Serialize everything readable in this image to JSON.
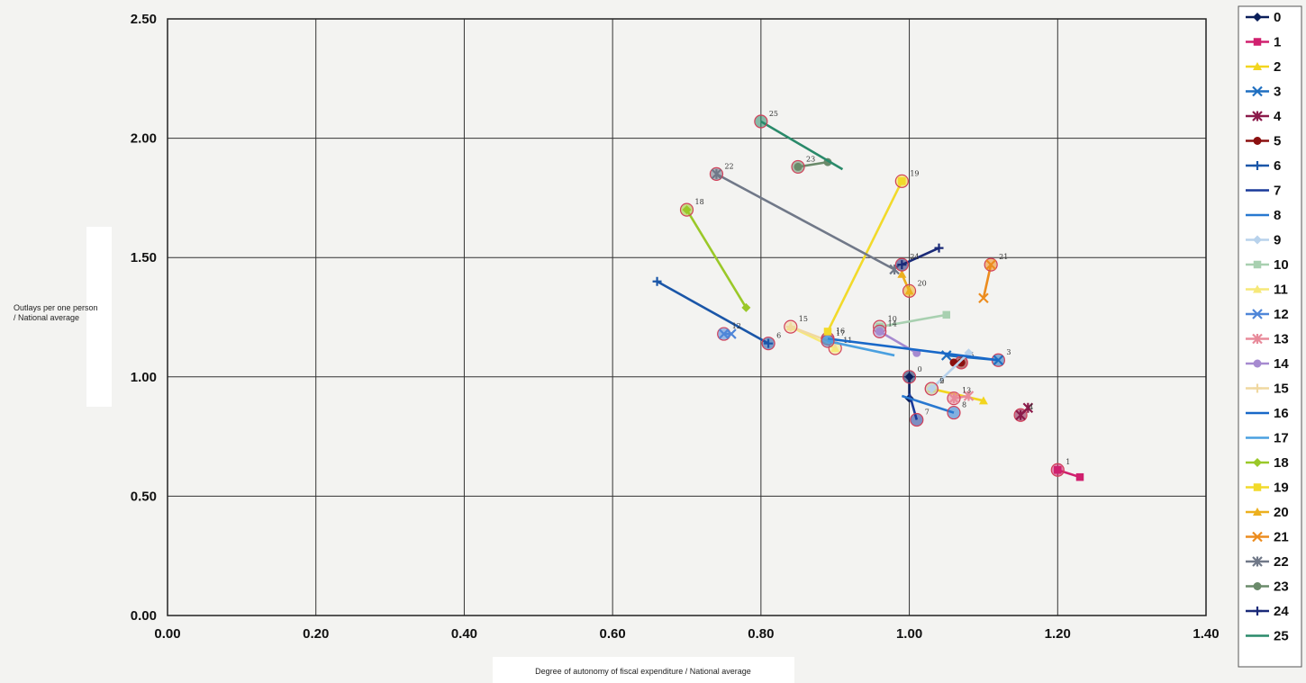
{
  "chart_data": {
    "type": "scatter",
    "xlabel": "Degree of autonomy of fiscal expenditure / National average",
    "ylabel_lines": [
      "Outlays per one person",
      "/ National average"
    ],
    "xlim": [
      0,
      1.4
    ],
    "ylim": [
      0,
      2.5
    ],
    "xticks": [
      "0.00",
      "0.20",
      "0.40",
      "0.60",
      "0.80",
      "1.00",
      "1.20",
      "1.40"
    ],
    "yticks": [
      "0.00",
      "0.50",
      "1.00",
      "1.50",
      "2.00",
      "2.50"
    ],
    "grid": true,
    "legend_position": "right",
    "series": [
      {
        "name": "0",
        "color": "#0a1e5a",
        "marker": "diamond",
        "points": [
          [
            1.0,
            1.0
          ],
          [
            1.0,
            0.91
          ]
        ],
        "circle_label": "0"
      },
      {
        "name": "1",
        "color": "#d0206e",
        "marker": "square",
        "points": [
          [
            1.2,
            0.61
          ],
          [
            1.23,
            0.58
          ]
        ],
        "circle_label": "1"
      },
      {
        "name": "2",
        "color": "#f2d51e",
        "marker": "triangle",
        "points": [
          [
            1.03,
            0.95
          ],
          [
            1.1,
            0.9
          ]
        ],
        "circle_label": "2"
      },
      {
        "name": "3",
        "color": "#1f6fc0",
        "marker": "x",
        "points": [
          [
            1.12,
            1.07
          ],
          [
            1.05,
            1.09
          ]
        ],
        "circle_label": "3"
      },
      {
        "name": "4",
        "color": "#8b1a4a",
        "marker": "star",
        "points": [
          [
            1.15,
            0.84
          ],
          [
            1.16,
            0.87
          ]
        ],
        "circle_label": "4"
      },
      {
        "name": "5",
        "color": "#8b1010",
        "marker": "circle",
        "points": [
          [
            1.07,
            1.06
          ],
          [
            1.06,
            1.06
          ]
        ],
        "circle_label": "5"
      },
      {
        "name": "6",
        "color": "#1a56a8",
        "marker": "plus",
        "points": [
          [
            0.81,
            1.14
          ],
          [
            0.66,
            1.4
          ]
        ],
        "circle_label": "6"
      },
      {
        "name": "7",
        "color": "#1a3a9a",
        "marker": "none",
        "points": [
          [
            1.01,
            0.82
          ],
          [
            1.0,
            0.93
          ]
        ],
        "circle_label": "7"
      },
      {
        "name": "8",
        "color": "#2878d0",
        "marker": "none",
        "points": [
          [
            1.06,
            0.85
          ],
          [
            0.99,
            0.92
          ]
        ],
        "circle_label": "8"
      },
      {
        "name": "9",
        "color": "#b8d2ec",
        "marker": "diamond",
        "points": [
          [
            1.03,
            0.95
          ],
          [
            1.08,
            1.1
          ]
        ],
        "circle_label": "9"
      },
      {
        "name": "10",
        "color": "#a8d0b0",
        "marker": "square",
        "points": [
          [
            0.96,
            1.21
          ],
          [
            1.05,
            1.26
          ]
        ],
        "circle_label": "10"
      },
      {
        "name": "11",
        "color": "#f6e878",
        "marker": "triangle",
        "points": [
          [
            0.9,
            1.12
          ],
          [
            0.84,
            1.21
          ]
        ],
        "circle_label": "11"
      },
      {
        "name": "12",
        "color": "#4f86d8",
        "marker": "x",
        "points": [
          [
            0.75,
            1.18
          ],
          [
            0.76,
            1.18
          ]
        ],
        "circle_label": "12"
      },
      {
        "name": "13",
        "color": "#e88a9a",
        "marker": "star",
        "points": [
          [
            1.06,
            0.91
          ],
          [
            1.08,
            0.92
          ]
        ],
        "circle_label": "13"
      },
      {
        "name": "14",
        "color": "#a68ad0",
        "marker": "circle",
        "points": [
          [
            0.96,
            1.19
          ],
          [
            1.01,
            1.1
          ]
        ],
        "circle_label": "14"
      },
      {
        "name": "15",
        "color": "#f0d8a0",
        "marker": "plus",
        "points": [
          [
            0.84,
            1.21
          ],
          [
            0.9,
            1.14
          ]
        ],
        "circle_label": "15"
      },
      {
        "name": "16",
        "color": "#1868c8",
        "marker": "none",
        "points": [
          [
            0.89,
            1.16
          ],
          [
            1.12,
            1.07
          ]
        ],
        "circle_label": "16"
      },
      {
        "name": "17",
        "color": "#4aa0e0",
        "marker": "none",
        "points": [
          [
            0.89,
            1.15
          ],
          [
            0.98,
            1.09
          ]
        ],
        "circle_label": "17"
      },
      {
        "name": "18",
        "color": "#9ac828",
        "marker": "diamond",
        "points": [
          [
            0.7,
            1.7
          ],
          [
            0.78,
            1.29
          ]
        ],
        "circle_label": "18"
      },
      {
        "name": "19",
        "color": "#f2da2a",
        "marker": "square",
        "points": [
          [
            0.99,
            1.82
          ],
          [
            0.89,
            1.19
          ]
        ],
        "circle_label": "19"
      },
      {
        "name": "20",
        "color": "#ecb01e",
        "marker": "triangle",
        "points": [
          [
            1.0,
            1.36
          ],
          [
            0.99,
            1.43
          ]
        ],
        "circle_label": "20"
      },
      {
        "name": "21",
        "color": "#ec8c1e",
        "marker": "x",
        "points": [
          [
            1.11,
            1.47
          ],
          [
            1.1,
            1.33
          ]
        ],
        "circle_label": "21"
      },
      {
        "name": "22",
        "color": "#707888",
        "marker": "star",
        "points": [
          [
            0.74,
            1.85
          ],
          [
            0.98,
            1.45
          ]
        ],
        "circle_label": "22"
      },
      {
        "name": "23",
        "color": "#6a8a6a",
        "marker": "circle",
        "points": [
          [
            0.85,
            1.88
          ],
          [
            0.89,
            1.9
          ]
        ],
        "circle_label": "23"
      },
      {
        "name": "24",
        "color": "#1a2a78",
        "marker": "plus",
        "points": [
          [
            0.99,
            1.47
          ],
          [
            1.04,
            1.54
          ]
        ],
        "circle_label": "24"
      },
      {
        "name": "25",
        "color": "#2a8a6a",
        "marker": "none",
        "points": [
          [
            0.8,
            2.07
          ],
          [
            0.91,
            1.87
          ]
        ],
        "circle_label": "25"
      }
    ]
  }
}
